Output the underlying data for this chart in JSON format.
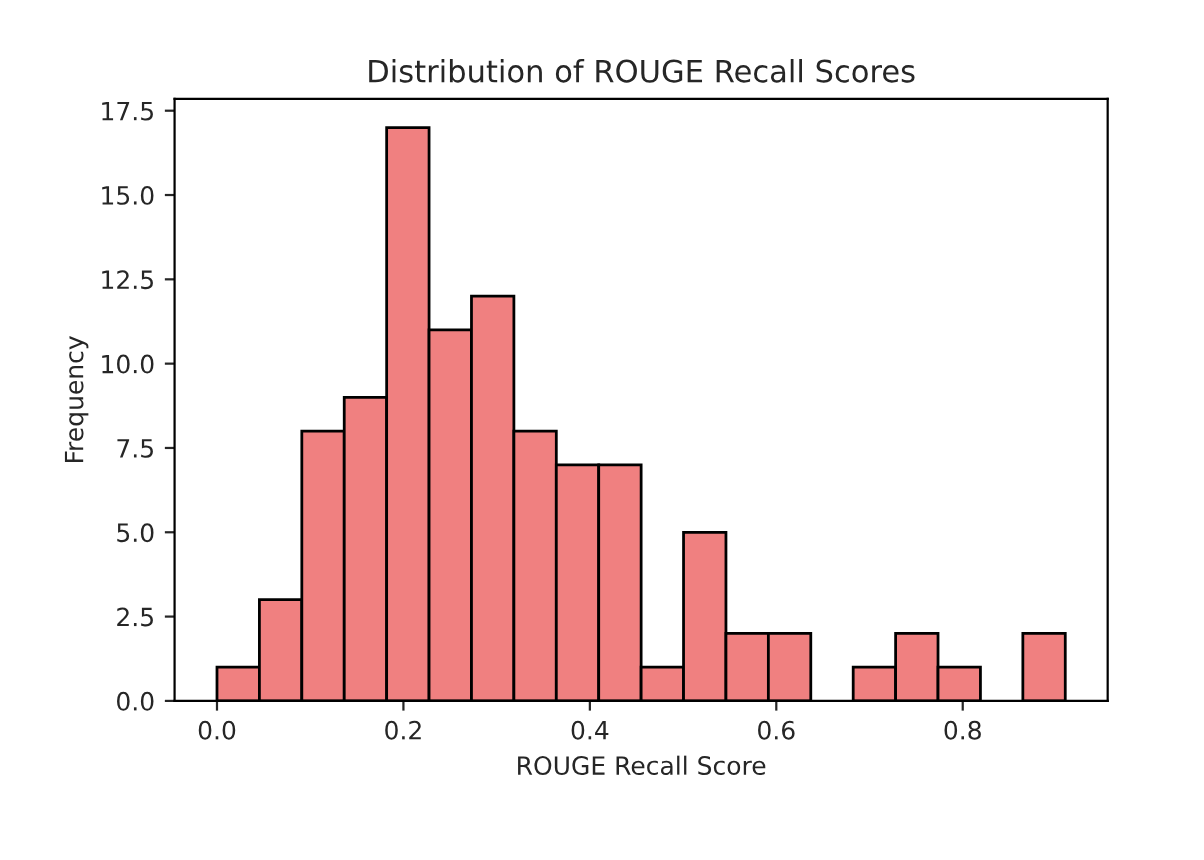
{
  "chart_data": {
    "type": "histogram",
    "title": "Distribution of ROUGE Recall Scores",
    "xlabel": "ROUGE Recall Score",
    "ylabel": "Frequency",
    "bins": [
      0.0,
      0.0455,
      0.091,
      0.1365,
      0.182,
      0.2275,
      0.273,
      0.3185,
      0.364,
      0.4095,
      0.455,
      0.5005,
      0.546,
      0.5915,
      0.637,
      0.6825,
      0.728,
      0.7735,
      0.819,
      0.8645,
      0.91
    ],
    "values": [
      1,
      3,
      8,
      9,
      17,
      11,
      12,
      8,
      7,
      7,
      1,
      5,
      2,
      2,
      0,
      1,
      2,
      1,
      0,
      2
    ],
    "color": "#f08080",
    "xlim": [
      -0.0455,
      0.9555
    ],
    "xticks": [
      {
        "value": 0.0,
        "label": "0.0"
      },
      0.2,
      0.4,
      0.6,
      0.8
    ],
    "ylim": [
      0,
      17.85
    ],
    "yticks": [
      {
        "value": 0,
        "label": "0.0"
      },
      {
        "value": 2.5,
        "label": "2.5"
      },
      {
        "value": 5,
        "label": "5.0"
      },
      {
        "value": 7.5,
        "label": "7.5"
      },
      {
        "value": 10,
        "label": "10.0"
      },
      {
        "value": 12.5,
        "label": "12.5"
      },
      {
        "value": 15,
        "label": "15.0"
      },
      {
        "value": 17.5,
        "label": "17.5"
      }
    ],
    "grid": false
  }
}
